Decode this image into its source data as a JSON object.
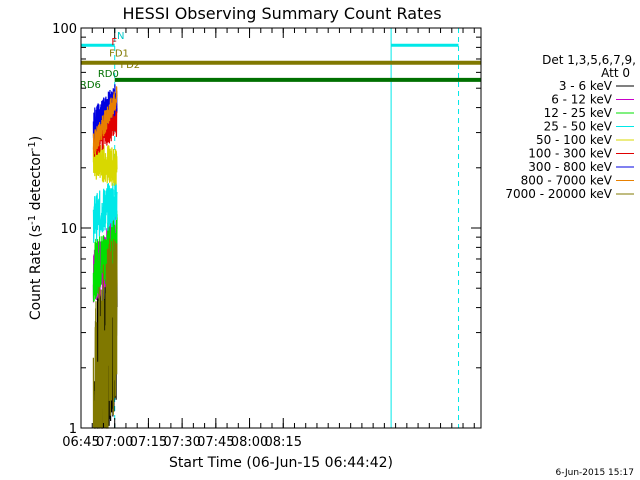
{
  "chart_data": {
    "type": "line",
    "title": "HESSI Observing Summary Count Rates",
    "xlabel": "Start Time (06-Jun-15 06:44:42)",
    "ylabel_main": "Count Rate (s",
    "ylabel_sup1": "-1",
    "ylabel_mid": " detector",
    "ylabel_sup2": "-1",
    "ylabel_end": ")",
    "yscale": "log",
    "ylim": [
      1,
      100
    ],
    "xlim_minutes": [
      405,
      583
    ],
    "x_ticks": [
      {
        "label": "06:45",
        "t": 405
      },
      {
        "label": "07:00",
        "t": 420
      },
      {
        "label": "07:15",
        "t": 435
      },
      {
        "label": "07:30",
        "t": 450
      },
      {
        "label": "07:45",
        "t": 465
      },
      {
        "label": "08:00",
        "t": 480
      },
      {
        "label": "08:15",
        "t": 495
      }
    ],
    "y_ticks": [
      {
        "label": "1",
        "v": 1
      },
      {
        "label": "10",
        "v": 10
      },
      {
        "label": "100",
        "v": 100
      }
    ],
    "legend_header1": "Det 1,3,5,6,7,9,",
    "legend_header2": "Att 0",
    "series": [
      {
        "name": "3 - 6 keV",
        "color": "#000000",
        "t_start": 411.0,
        "t_end": 421.0,
        "start": 1.5,
        "end": 3.8,
        "noise": 0.45
      },
      {
        "name": "6 - 12 keV",
        "color": "#c800c8",
        "t_start": 410.5,
        "t_end": 421.0,
        "start": 5.5,
        "end": 9.0,
        "noise": 0.15
      },
      {
        "name": "12 - 25 keV",
        "color": "#00e000",
        "t_start": 410.5,
        "t_end": 421.0,
        "start": 6.0,
        "end": 9.0,
        "noise": 0.15
      },
      {
        "name": "25 - 50 keV",
        "color": "#00e8e8",
        "t_start": 410.5,
        "t_end": 421.0,
        "start": 11.0,
        "end": 14.0,
        "noise": 0.12
      },
      {
        "name": "50 - 100 keV",
        "color": "#d8d800",
        "t_start": 410.5,
        "t_end": 421.0,
        "start": 22.0,
        "end": 20.0,
        "noise": 0.1
      },
      {
        "name": "100 - 300 keV",
        "color": "#e00000",
        "t_start": 410.5,
        "t_end": 421.0,
        "start": 28.0,
        "end": 36.0,
        "noise": 0.1
      },
      {
        "name": "300 - 800 keV",
        "color": "#0000e0",
        "t_start": 410.5,
        "t_end": 421.0,
        "start": 33.0,
        "end": 45.0,
        "noise": 0.08
      },
      {
        "name": "800 - 7000 keV",
        "color": "#e88000",
        "t_start": 410.5,
        "t_end": 421.0,
        "start": 26.0,
        "end": 45.0,
        "noise": 0.06
      },
      {
        "name": "7000 - 20000 keV",
        "color": "#807800",
        "t_start": 410.5,
        "t_end": 421.0,
        "start": 1.2,
        "end": 4.5,
        "noise": 0.5
      }
    ],
    "flag_bars": [
      {
        "name": "N",
        "color": "#00e8e8",
        "t_start": 405.0,
        "t_end": 420.0,
        "level": 82.0,
        "width": 3
      },
      {
        "name": "",
        "color": "#00e8e8",
        "t_start": 543.0,
        "t_end": 573.0,
        "level": 82.0,
        "width": 3
      },
      {
        "name": "FD2",
        "color": "#807800",
        "t_start": 405.0,
        "t_end": 583.0,
        "level": 67.0,
        "width": 4
      },
      {
        "name": "RD0",
        "color": "#007000",
        "t_start": 420.0,
        "t_end": 583.0,
        "level": 55.0,
        "width": 4
      }
    ],
    "flag_labels": [
      {
        "text": "N",
        "color": "#00c8c8",
        "t": 421.0,
        "level": 88.0
      },
      {
        "text": "F",
        "color": "#e00000",
        "t": 418.5,
        "level": 82.0
      },
      {
        "text": "FD1",
        "color": "#807800",
        "t": 417.5,
        "level": 72.0
      },
      {
        "text": "FD2",
        "color": "#807800",
        "t": 422.5,
        "level": 63.0
      },
      {
        "text": "RD0",
        "color": "#007000",
        "t": 412.5,
        "level": 57.0
      },
      {
        "text": "RD6",
        "color": "#007000",
        "t": 404.5,
        "level": 50.0
      }
    ],
    "vertical_lines": [
      {
        "t": 405.0,
        "color": "#00e8e8",
        "dashed": false
      },
      {
        "t": 420.0,
        "color": "#00e8e8",
        "dashed": true
      },
      {
        "t": 543.0,
        "color": "#00e8e8",
        "dashed": false
      },
      {
        "t": 573.0,
        "color": "#00e8e8",
        "dashed": true
      }
    ],
    "timestamp": "6-Jun-2015 15:17"
  }
}
